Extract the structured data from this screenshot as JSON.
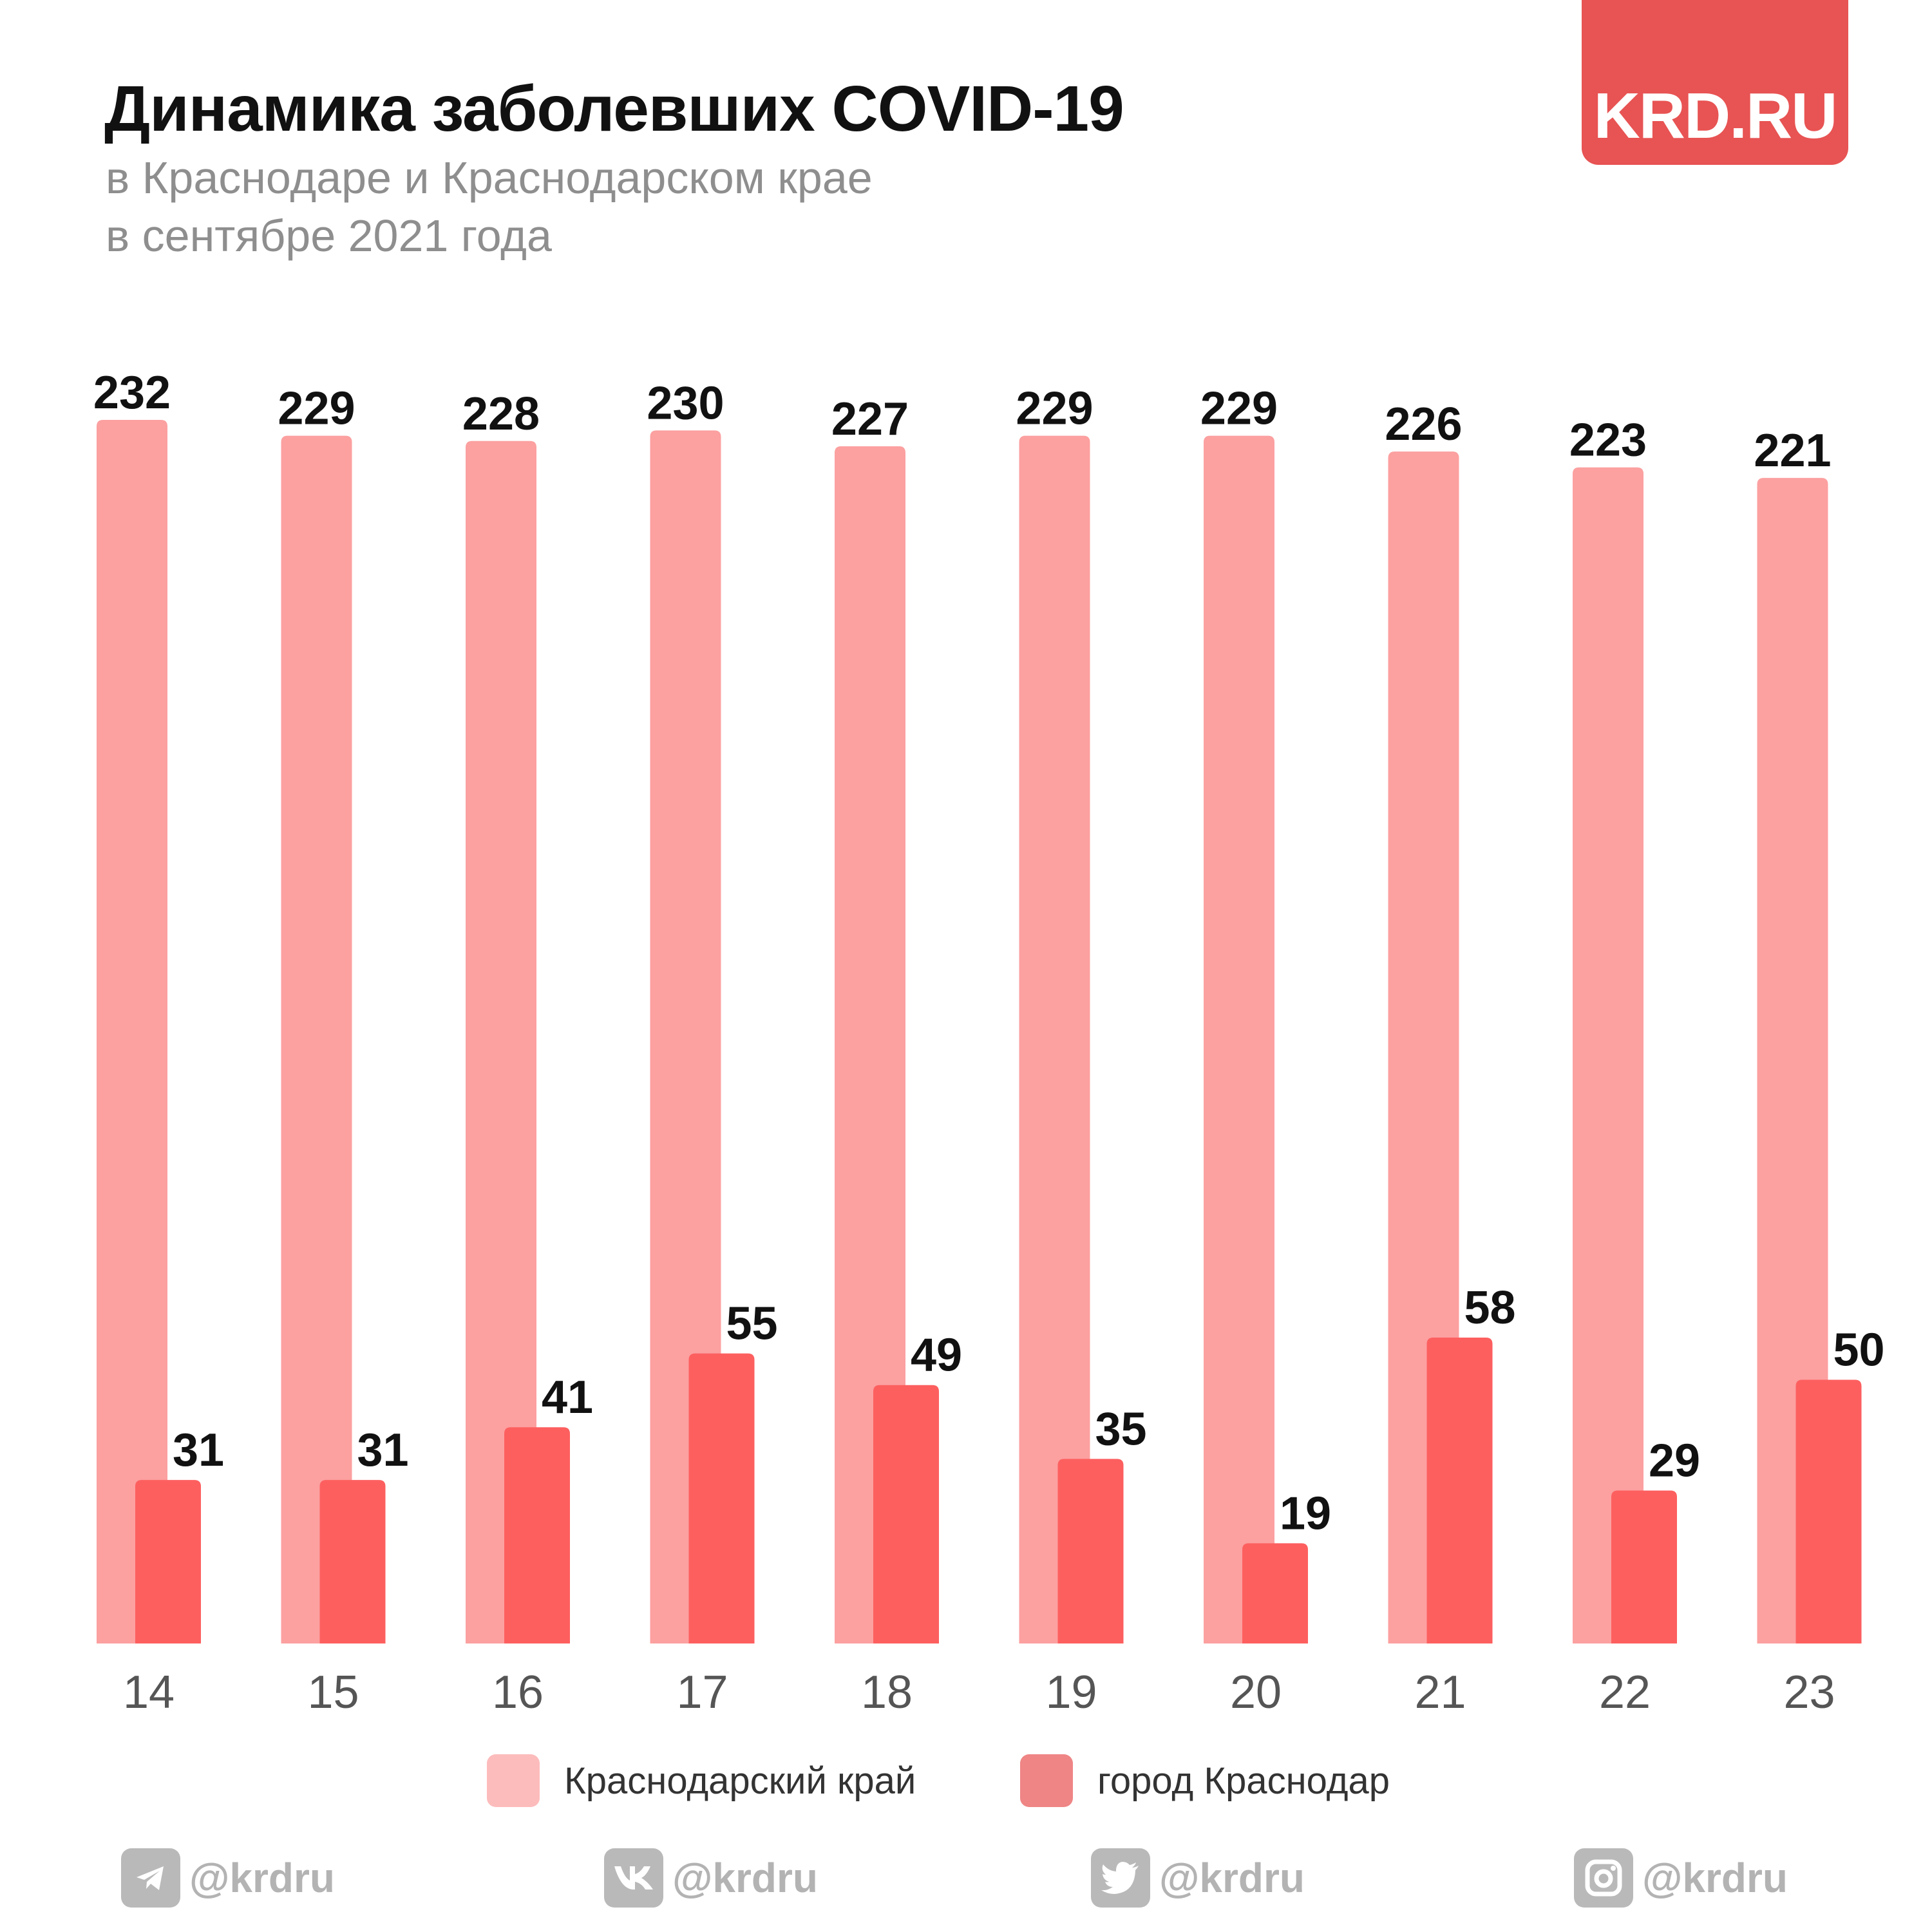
{
  "header": {
    "title": "Динамика заболевших COVID-19",
    "subtitle_line1": "в Краснодаре и Краснодарском крае",
    "subtitle_line2": "в сентябре 2021 года",
    "logo_text": "KRD.RU"
  },
  "legend": [
    {
      "label": "Краснодарский край",
      "color": "#fdbcbc"
    },
    {
      "label": "город Краснодар",
      "color": "#ef8585"
    }
  ],
  "social": [
    {
      "icon": "telegram-icon",
      "handle": "@krdru"
    },
    {
      "icon": "vk-icon",
      "handle": "@krdru"
    },
    {
      "icon": "twitter-icon",
      "handle": "@krdru"
    },
    {
      "icon": "instagram-icon",
      "handle": "@krdru"
    }
  ],
  "colors": {
    "region_bar": "#fca0a0",
    "city_bar": "#fd5f5f",
    "logo_bg": "#e85353"
  },
  "chart_data": {
    "type": "bar",
    "categories": [
      "14",
      "15",
      "16",
      "17",
      "18",
      "19",
      "20",
      "21",
      "22",
      "23"
    ],
    "series": [
      {
        "name": "Краснодарский край",
        "values": [
          232,
          229,
          228,
          230,
          227,
          229,
          229,
          226,
          223,
          221
        ]
      },
      {
        "name": "город Краснодар",
        "values": [
          31,
          31,
          41,
          55,
          49,
          35,
          19,
          58,
          29,
          50
        ]
      }
    ],
    "title": "Динамика заболевших COVID-19",
    "xlabel": "",
    "ylabel": "",
    "ylim": [
      0,
      232
    ],
    "grid": false,
    "legend_position": "bottom"
  }
}
